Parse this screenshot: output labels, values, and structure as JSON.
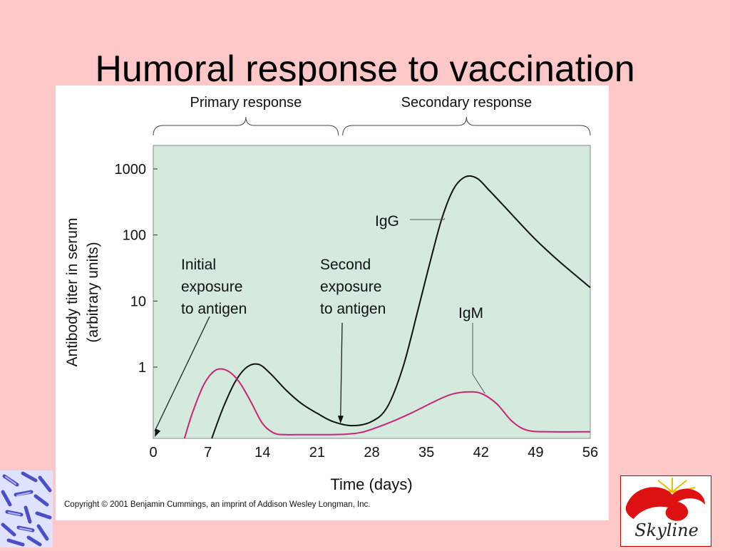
{
  "slide": {
    "title": "Humoral response to vaccination",
    "copyright": "Copyright © 2001 Benjamin Cummings, an imprint of Addison Wesley Longman, Inc.",
    "logo_text": "Skyline"
  },
  "chart_data": {
    "type": "line",
    "title": "",
    "xlabel": "Time (days)",
    "ylabel_lines": [
      "Antibody titer in serum",
      "(arbitrary units)"
    ],
    "xlim": [
      0,
      56
    ],
    "x_ticks": [
      0,
      7,
      14,
      21,
      28,
      35,
      42,
      49,
      56
    ],
    "y_scale": "log",
    "y_ticks": [
      {
        "value": 1,
        "label": "1"
      },
      {
        "value": 10,
        "label": "10"
      },
      {
        "value": 100,
        "label": "100"
      },
      {
        "value": 1000,
        "label": "1000"
      }
    ],
    "ylim": [
      0.05,
      2000
    ],
    "grid": false,
    "background_color": "#d3eadd",
    "series": [
      {
        "name": "IgG",
        "color": "#111111",
        "x": [
          7.5,
          9,
          10.5,
          12,
          13.5,
          15,
          17,
          19,
          21,
          23,
          25.5,
          28,
          30,
          32,
          34,
          35.5,
          37,
          38.5,
          40,
          41.5,
          43,
          45,
          47,
          49,
          52,
          56
        ],
        "y": [
          0.07,
          0.25,
          0.6,
          1.0,
          1.1,
          0.8,
          0.45,
          0.28,
          0.2,
          0.15,
          0.13,
          0.15,
          0.25,
          1.0,
          8,
          40,
          180,
          500,
          760,
          720,
          480,
          270,
          150,
          85,
          40,
          16
        ]
      },
      {
        "name": "IgM",
        "color": "#cc2277",
        "x": [
          4,
          5,
          6.5,
          8,
          9.5,
          11,
          12.5,
          14,
          15.5,
          17,
          19,
          21,
          23,
          25,
          27,
          30,
          33,
          36,
          38,
          40,
          42,
          44,
          46,
          48,
          51,
          56
        ],
        "y": [
          0.07,
          0.2,
          0.55,
          0.9,
          0.88,
          0.6,
          0.3,
          0.14,
          0.1,
          0.095,
          0.095,
          0.095,
          0.095,
          0.097,
          0.105,
          0.14,
          0.2,
          0.3,
          0.38,
          0.42,
          0.4,
          0.28,
          0.15,
          0.11,
          0.105,
          0.105
        ]
      }
    ],
    "response_brackets": [
      {
        "label": "Primary response",
        "x_start": 0,
        "x_end": 24
      },
      {
        "label": "Secondary response",
        "x_start": 24,
        "x_end": 56
      }
    ],
    "annotations": [
      {
        "lines": [
          "Initial",
          "exposure",
          "to antigen"
        ],
        "arrow_x": 0,
        "arrow_y": 0.05
      },
      {
        "lines": [
          "Second",
          "exposure",
          "to antigen"
        ],
        "arrow_x": 24,
        "arrow_y": 0.14
      }
    ],
    "series_labels": [
      {
        "text": "IgG",
        "leader_to_x": 37.3,
        "leader_to_y": 180
      },
      {
        "text": "IgM",
        "leader_to_x": 42.5,
        "leader_to_y": 0.4
      }
    ]
  }
}
